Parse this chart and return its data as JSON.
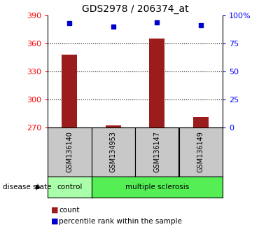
{
  "title": "GDS2978 / 206374_at",
  "samples": [
    "GSM136140",
    "GSM134953",
    "GSM136147",
    "GSM136149"
  ],
  "counts": [
    348,
    272,
    365,
    281
  ],
  "percentiles": [
    93,
    90,
    94,
    91
  ],
  "ylim_left": [
    270,
    390
  ],
  "ylim_right": [
    0,
    100
  ],
  "yticks_left": [
    270,
    300,
    330,
    360,
    390
  ],
  "yticks_right": [
    0,
    25,
    50,
    75,
    100
  ],
  "ytick_labels_right": [
    "0",
    "25",
    "50",
    "75",
    "100%"
  ],
  "bar_color": "#9B1C1C",
  "dot_color": "#0000CC",
  "disease_colors": {
    "control": "#AAFFAA",
    "multiple sclerosis": "#55EE55"
  },
  "label_count": "count",
  "label_percentile": "percentile rank within the sample",
  "disease_label": "disease state",
  "sample_box_color": "#C8C8C8",
  "title_fontsize": 10,
  "tick_fontsize": 8,
  "sample_fontsize": 7,
  "legend_fontsize": 7.5
}
